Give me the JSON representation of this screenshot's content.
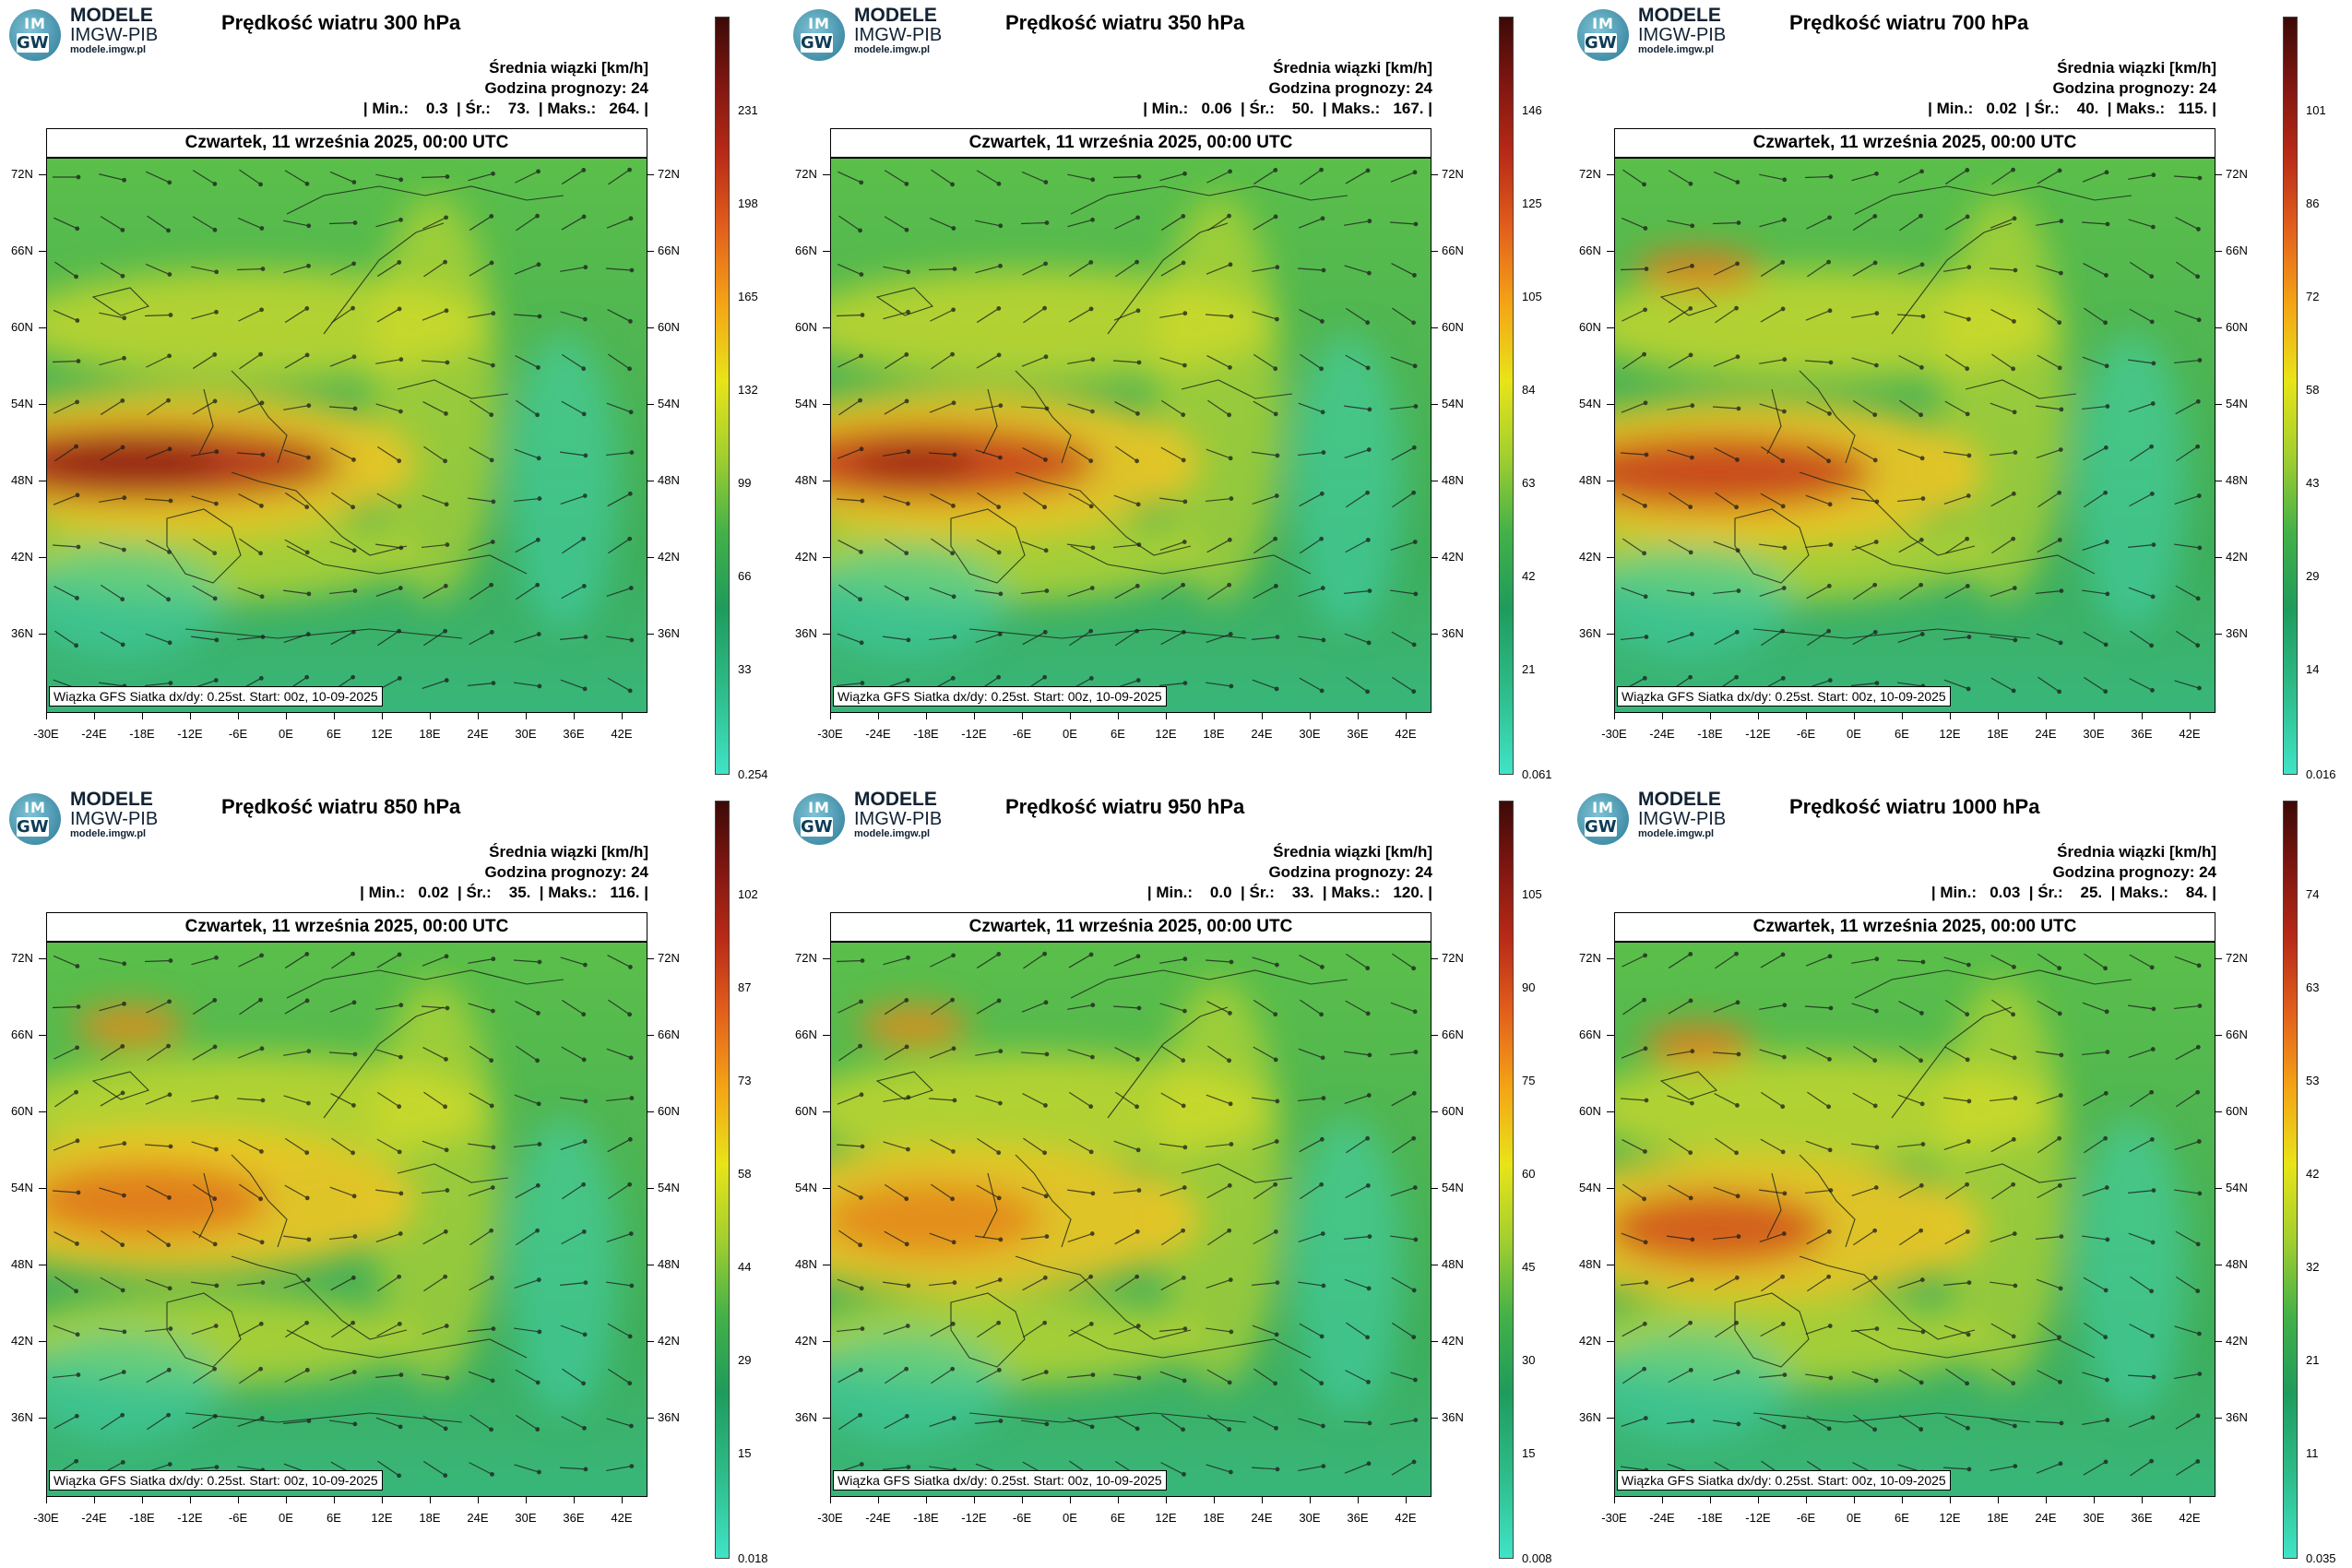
{
  "common": {
    "brand_line1": "MODELE",
    "brand_line2": "IMGW-PIB",
    "brand_url": "modele.imgw.pl",
    "logo_text_top": "IM",
    "logo_text_bottom": "GW",
    "srednia_label": "Średnia wiązki [km/h]",
    "godzina_label": "Godzina prognozy: 24",
    "date_label": "Czwartek, 11 września 2025, 00:00 UTC",
    "info_label": "Wiązka GFS Siatka dx/dy: 0.25st. Start: 00z, 10-09-2025",
    "lat_labels": [
      "72N",
      "66N",
      "60N",
      "54N",
      "48N",
      "42N",
      "36N"
    ],
    "lon_labels": [
      "-30E",
      "-24E",
      "-18E",
      "-12E",
      "-6E",
      "0E",
      "6E",
      "12E",
      "18E",
      "24E",
      "30E",
      "36E",
      "42E"
    ],
    "colors": {
      "low": "#40e3c7",
      "mid": "#e8e418",
      "high": "#3c0a07",
      "jet": "#c0391b"
    }
  },
  "panels": [
    {
      "title": "Prędkość wiatru 300 hPa",
      "stats": "| Min.:    0.3  | Śr.:    73.  | Maks.:   264. |",
      "scale": [
        "231",
        "198",
        "165",
        "132",
        "99",
        "66",
        "33"
      ],
      "scale_min": "0.254"
    },
    {
      "title": "Prędkość wiatru 350 hPa",
      "stats": "| Min.:   0.06  | Śr.:    50.  | Maks.:   167. |",
      "scale": [
        "146",
        "125",
        "105",
        "84",
        "63",
        "42",
        "21"
      ],
      "scale_min": "0.061"
    },
    {
      "title": "Prędkość wiatru 700 hPa",
      "stats": "| Min.:   0.02  | Śr.:    40.  | Maks.:   115. |",
      "scale": [
        "101",
        "86",
        "72",
        "58",
        "43",
        "29",
        "14"
      ],
      "scale_min": "0.016"
    },
    {
      "title": "Prędkość wiatru 850 hPa",
      "stats": "| Min.:   0.02  | Śr.:    35.  | Maks.:   116. |",
      "scale": [
        "102",
        "87",
        "73",
        "58",
        "44",
        "29",
        "15"
      ],
      "scale_min": "0.018"
    },
    {
      "title": "Prędkość wiatru 950 hPa",
      "stats": "| Min.:    0.0  | Śr.:    33.  | Maks.:   120. |",
      "scale": [
        "105",
        "90",
        "75",
        "60",
        "45",
        "30",
        "15"
      ],
      "scale_min": "0.008"
    },
    {
      "title": "Prędkość wiatru 1000 hPa",
      "stats": "| Min.:   0.03  | Śr.:    25.  | Maks.:    84. |",
      "scale": [
        "74",
        "63",
        "53",
        "42",
        "32",
        "21",
        "11"
      ],
      "scale_min": "0.035"
    }
  ]
}
